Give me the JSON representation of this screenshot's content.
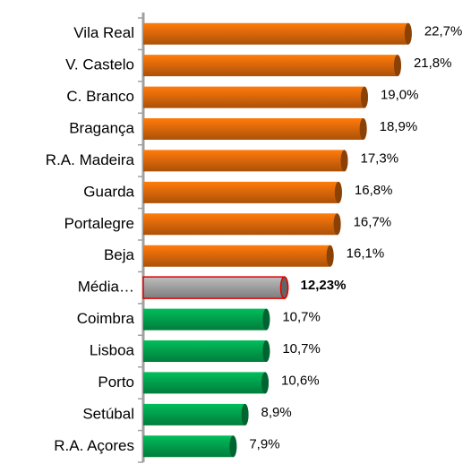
{
  "chart_data": {
    "type": "bar",
    "orientation": "horizontal",
    "categories": [
      "Vila Real",
      "V. Castelo",
      "C. Branco",
      "Bragança",
      "R.A. Madeira",
      "Guarda",
      "Portalegre",
      "Beja",
      "Média…",
      "Coimbra",
      "Lisboa",
      "Porto",
      "Setúbal",
      "R.A. Açores"
    ],
    "values": [
      22.7,
      21.8,
      19.0,
      18.9,
      17.3,
      16.8,
      16.7,
      16.1,
      12.23,
      10.7,
      10.7,
      10.6,
      8.9,
      7.9
    ],
    "value_labels": [
      "22,7%",
      "21,8%",
      "19,0%",
      "18,9%",
      "17,3%",
      "16,8%",
      "16,7%",
      "16,1%",
      "12,23%",
      "10,7%",
      "10,7%",
      "10,6%",
      "8,9%",
      "7,9%"
    ],
    "colors": [
      "#e46c0a",
      "#e46c0a",
      "#e46c0a",
      "#e46c0a",
      "#e46c0a",
      "#e46c0a",
      "#e46c0a",
      "#e46c0a",
      "#a6a6a6",
      "#00a650",
      "#00a650",
      "#00a650",
      "#00a650",
      "#00a650"
    ],
    "highlight_index": 8,
    "xlim": [
      0,
      24
    ]
  }
}
